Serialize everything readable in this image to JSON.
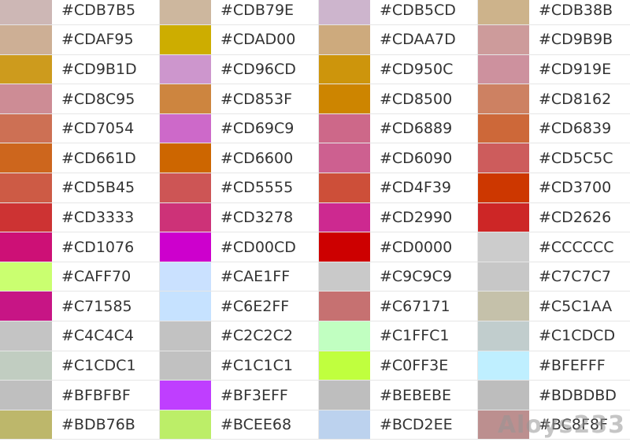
{
  "rows": [
    [
      "#CDB7B5",
      "#CDB79E",
      "#CDB5CD",
      "#CDB38B"
    ],
    [
      "#CDAF95",
      "#CDAD00",
      "#CDAA7D",
      "#CD9B9B"
    ],
    [
      "#CD9B1D",
      "#CD96CD",
      "#CD950C",
      "#CD919E"
    ],
    [
      "#CD8C95",
      "#CD853F",
      "#CD8500",
      "#CD8162"
    ],
    [
      "#CD7054",
      "#CD69C9",
      "#CD6889",
      "#CD6839"
    ],
    [
      "#CD661D",
      "#CD6600",
      "#CD6090",
      "#CD5C5C"
    ],
    [
      "#CD5B45",
      "#CD5555",
      "#CD4F39",
      "#CD3700"
    ],
    [
      "#CD3333",
      "#CD3278",
      "#CD2990",
      "#CD2626"
    ],
    [
      "#CD1076",
      "#CD00CD",
      "#CD0000",
      "#CCCCCC"
    ],
    [
      "#CAFF70",
      "#CAE1FF",
      "#C9C9C9",
      "#C7C7C7"
    ],
    [
      "#C71585",
      "#C6E2FF",
      "#C67171",
      "#C5C1AA"
    ],
    [
      "#C4C4C4",
      "#C2C2C2",
      "#C1FFC1",
      "#C1CDCD"
    ],
    [
      "#C1CDC1",
      "#C1C1C1",
      "#C0FF3E",
      "#BFEFFF"
    ],
    [
      "#BFBFBF",
      "#BF3EFF",
      "#BEBEBE",
      "#BDBDBD"
    ],
    [
      "#BDB76B",
      "#BCEE68",
      "#BCD2EE",
      "#BC8F8F"
    ]
  ],
  "watermark": "Aloys233"
}
